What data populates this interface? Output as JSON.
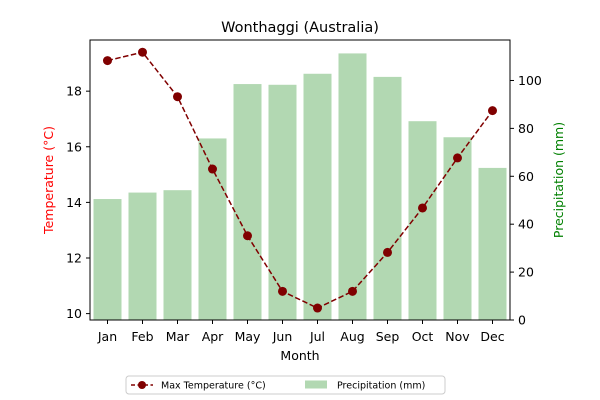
{
  "chart_data": {
    "type": "bar+line",
    "title": "Wonthaggi (Australia)",
    "xlabel": "Month",
    "categories": [
      "Jan",
      "Feb",
      "Mar",
      "Apr",
      "May",
      "Jun",
      "Jul",
      "Aug",
      "Sep",
      "Oct",
      "Nov",
      "Dec"
    ],
    "series": [
      {
        "name": "Max Temperature (°C)",
        "type": "line",
        "axis": "left",
        "color": "#800000",
        "line_style": "dashed",
        "marker": "circle",
        "values": [
          19.1,
          19.4,
          17.8,
          15.2,
          12.8,
          10.8,
          10.2,
          10.8,
          12.2,
          13.8,
          15.6,
          17.3
        ]
      },
      {
        "name": "Precipitation (mm)",
        "type": "bar",
        "axis": "right",
        "color": "#b2d8b2",
        "values": [
          50.5,
          53.2,
          54.2,
          75.8,
          98.5,
          98.2,
          102.8,
          111.3,
          101.5,
          83.0,
          76.3,
          63.5
        ]
      }
    ],
    "y_left": {
      "label": "Temperature (°C)",
      "color": "#ff0000",
      "range": [
        9.77,
        19.84
      ],
      "ticks": [
        10,
        12,
        14,
        16,
        18
      ]
    },
    "y_right": {
      "label": "Precipitation (mm)",
      "color": "#008000",
      "range": [
        0,
        116.9
      ],
      "ticks": [
        0,
        20,
        40,
        60,
        80,
        100
      ]
    },
    "legend": {
      "placement": "bottom-center",
      "entries": [
        "Max Temperature (°C)",
        "Precipitation (mm)"
      ]
    },
    "grid": false
  }
}
